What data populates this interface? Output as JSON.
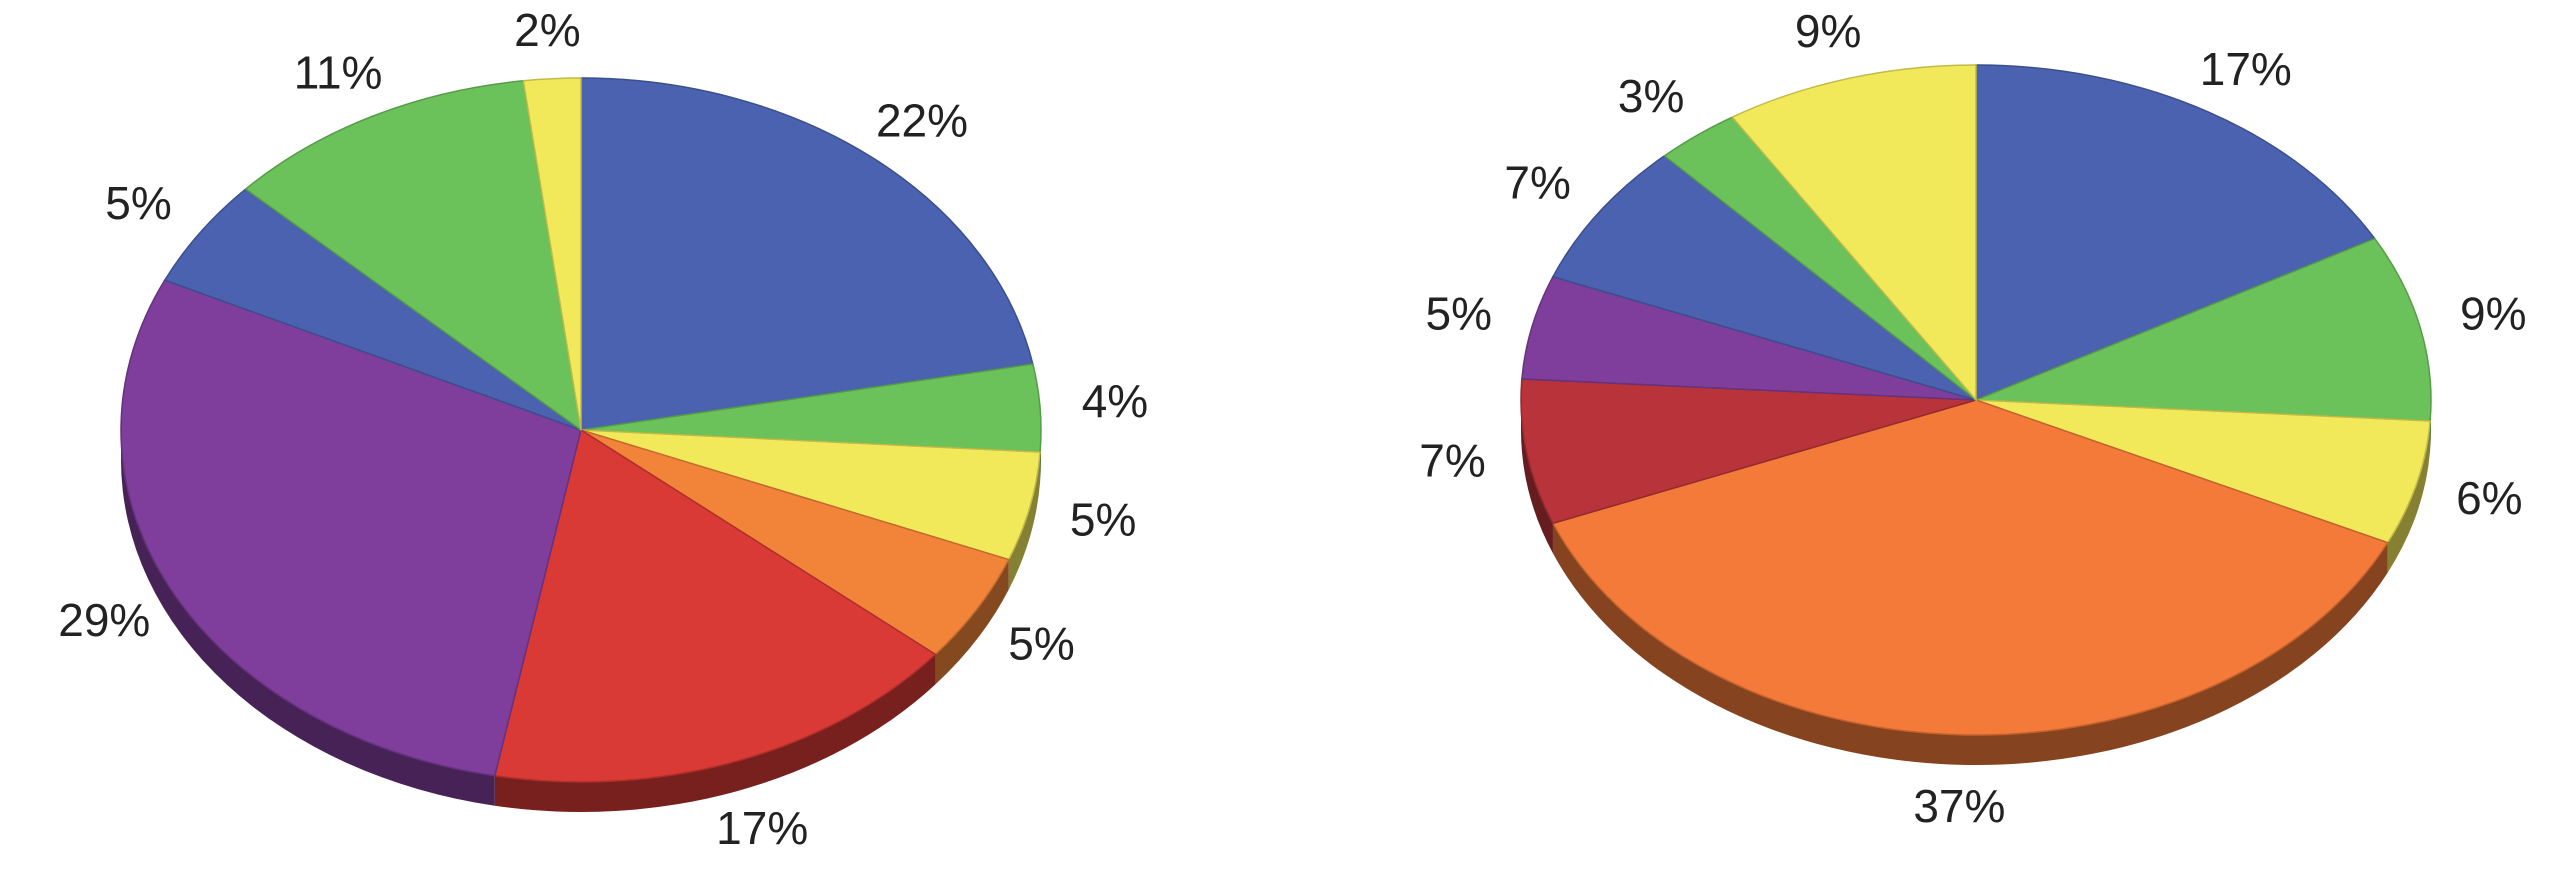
{
  "chart_data": [
    {
      "type": "pie",
      "values": [
        22,
        4,
        5,
        5,
        17,
        29,
        5,
        11,
        2
      ],
      "value_labels": [
        "22%",
        "4%",
        "5%",
        "5%",
        "17%",
        "29%",
        "5%",
        "11%",
        "2%"
      ],
      "colors": [
        "#4a62b0",
        "#6cc25a",
        "#f1e95a",
        "#f2843a",
        "#d93a36",
        "#7f3d9c",
        "#4a62b0",
        "#6cc25a",
        "#f1e95a"
      ]
    },
    {
      "type": "pie",
      "values": [
        17,
        9,
        6,
        37,
        7,
        5,
        7,
        3,
        9
      ],
      "value_labels": [
        "17%",
        "9%",
        "6%",
        "37%",
        "7%",
        "5%",
        "7%",
        "3%",
        "9%"
      ],
      "colors": [
        "#4a62b0",
        "#6cc25a",
        "#f1e95a",
        "#f47a3a",
        "#b8343a",
        "#7f3d9c",
        "#4a62b0",
        "#6cc25a",
        "#f1e95a"
      ]
    }
  ]
}
